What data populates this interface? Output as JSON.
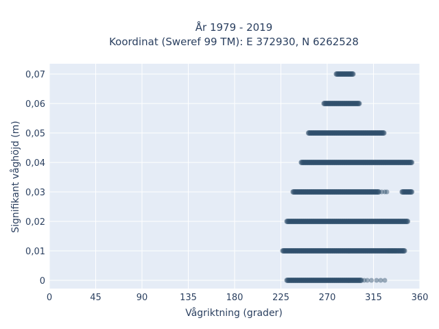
{
  "chart_data": {
    "type": "scatter",
    "title_line1": "År 1979 - 2019",
    "title_line2": "Koordinat (Sweref 99 TM): E 372930, N 6262528",
    "xlabel": "Vågriktning (grader)",
    "ylabel": "Signifikant våghöjd (m)",
    "xlim": [
      0,
      360
    ],
    "ylim": [
      -0.0028,
      0.0735
    ],
    "x_ticks": [
      0,
      45,
      90,
      135,
      180,
      225,
      270,
      315,
      360
    ],
    "y_ticks": [
      0,
      0.01,
      0.02,
      0.03,
      0.04,
      0.05,
      0.06,
      0.07
    ],
    "y_tick_labels": [
      "0",
      "0,01",
      "0,02",
      "0,03",
      "0,04",
      "0,05",
      "0,06",
      "0,07"
    ],
    "grid": true,
    "marker_color": "#2f4f6a",
    "plot_bg": "#e5ecf6",
    "points": [
      {
        "y": 0.07,
        "x_ranges": [
          [
            279,
            295
          ]
        ],
        "sparse_x": []
      },
      {
        "y": 0.06,
        "x_ranges": [
          [
            267,
            301
          ]
        ],
        "sparse_x": []
      },
      {
        "y": 0.05,
        "x_ranges": [
          [
            252,
            325
          ]
        ],
        "sparse_x": []
      },
      {
        "y": 0.04,
        "x_ranges": [
          [
            245,
            352
          ]
        ],
        "sparse_x": []
      },
      {
        "y": 0.03,
        "x_ranges": [
          [
            237,
            320
          ],
          [
            343,
            352
          ]
        ],
        "sparse_x": [
          323,
          326,
          328
        ]
      },
      {
        "y": 0.02,
        "x_ranges": [
          [
            231,
            348
          ]
        ],
        "sparse_x": []
      },
      {
        "y": 0.01,
        "x_ranges": [
          [
            227,
            345
          ]
        ],
        "sparse_x": [
          330,
          333,
          336
        ]
      },
      {
        "y": 0.0,
        "x_ranges": [
          [
            231,
            303
          ]
        ],
        "sparse_x": [
          306,
          309,
          313,
          318,
          322,
          326
        ]
      }
    ]
  }
}
